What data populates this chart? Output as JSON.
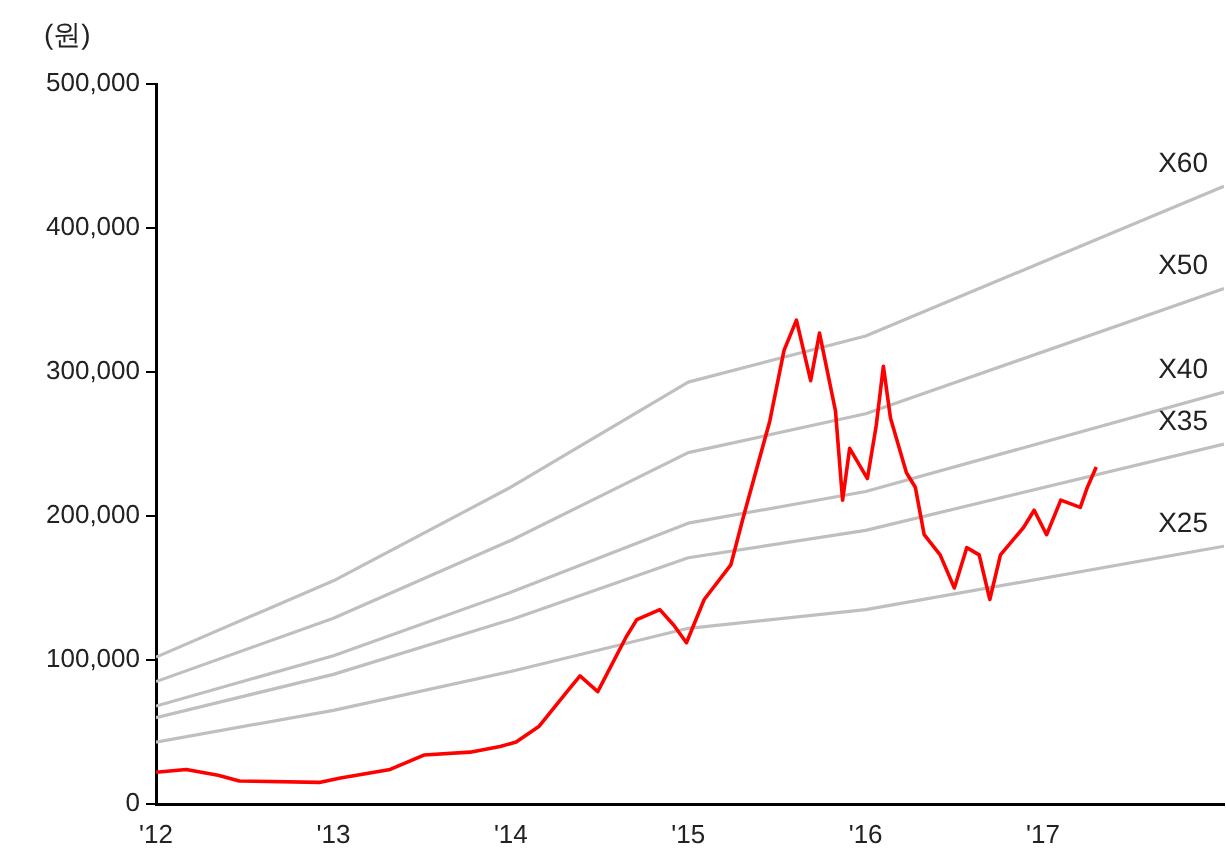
{
  "chart_data": {
    "type": "line",
    "ylabel": "(원)",
    "xlim": [
      2012,
      2018.02
    ],
    "xticks": [
      {
        "value": 2012,
        "label": "'12"
      },
      {
        "value": 2013,
        "label": "'13"
      },
      {
        "value": 2014,
        "label": "'14"
      },
      {
        "value": 2015,
        "label": "'15"
      },
      {
        "value": 2016,
        "label": "'16"
      },
      {
        "value": 2017,
        "label": "'17"
      }
    ],
    "ylim": [
      0,
      500000
    ],
    "yticks": [
      0,
      {
        "value": 100000,
        "label": "100,000"
      },
      {
        "value": 200000,
        "label": "200,000"
      },
      {
        "value": 300000,
        "label": "300,000"
      },
      {
        "value": 400000,
        "label": "400,000"
      },
      {
        "value": 500000,
        "label": "500,000"
      }
    ],
    "grid": false,
    "legend": false,
    "marker": "none",
    "line_style": "solid",
    "series": [
      {
        "name": "X60",
        "color": "#bfbfbf",
        "x": [
          2012,
          2013,
          2014,
          2015,
          2016,
          2018.02
        ],
        "values": [
          102000,
          155000,
          220000,
          293000,
          325000,
          429000
        ]
      },
      {
        "name": "X50",
        "color": "#bfbfbf",
        "x": [
          2012,
          2013,
          2014,
          2015,
          2016,
          2018.02
        ],
        "values": [
          85000,
          129000,
          183000,
          244000,
          271000,
          358000
        ]
      },
      {
        "name": "X40",
        "color": "#bfbfbf",
        "x": [
          2012,
          2013,
          2014,
          2015,
          2016,
          2018.02
        ],
        "values": [
          68000,
          103000,
          147000,
          195000,
          217000,
          286000
        ]
      },
      {
        "name": "X35",
        "color": "#bfbfbf",
        "x": [
          2012,
          2013,
          2014,
          2015,
          2016,
          2018.02
        ],
        "values": [
          60000,
          90000,
          128000,
          171000,
          190000,
          250000
        ]
      },
      {
        "name": "X25",
        "color": "#bfbfbf",
        "x": [
          2012,
          2013,
          2014,
          2015,
          2016,
          2018.02
        ],
        "values": [
          43000,
          65000,
          92000,
          122000,
          135000,
          179000
        ]
      },
      {
        "color": "#ff0000",
        "x": [
          2012.0,
          2012.17,
          2012.35,
          2012.47,
          2012.92,
          2013.04,
          2013.32,
          2013.51,
          2013.77,
          2013.94,
          2014.03,
          2014.16,
          2014.31,
          2014.39,
          2014.49,
          2014.65,
          2014.71,
          2014.84,
          2014.92,
          2014.99,
          2015.09,
          2015.24,
          2015.31,
          2015.46,
          2015.54,
          2015.61,
          2015.69,
          2015.74,
          2015.83,
          2015.87,
          2015.91,
          2016.01,
          2016.06,
          2016.1,
          2016.14,
          2016.23,
          2016.28,
          2016.33,
          2016.42,
          2016.5,
          2016.57,
          2016.64,
          2016.7,
          2016.76,
          2016.89,
          2016.95,
          2017.02,
          2017.1,
          2017.21,
          2017.25,
          2017.3
        ],
        "values": [
          22000,
          24000,
          20000,
          16000,
          15000,
          18000,
          24000,
          34000,
          36000,
          40000,
          43000,
          54000,
          77000,
          89000,
          78000,
          116000,
          128000,
          135000,
          124000,
          112000,
          142000,
          166000,
          199000,
          266000,
          315000,
          336000,
          294000,
          327000,
          273000,
          211000,
          247000,
          226000,
          263000,
          304000,
          268000,
          230000,
          220000,
          187000,
          173000,
          150000,
          178000,
          173000,
          142000,
          173000,
          192000,
          204000,
          187000,
          211000,
          206000,
          220000,
          234000
        ]
      }
    ]
  }
}
